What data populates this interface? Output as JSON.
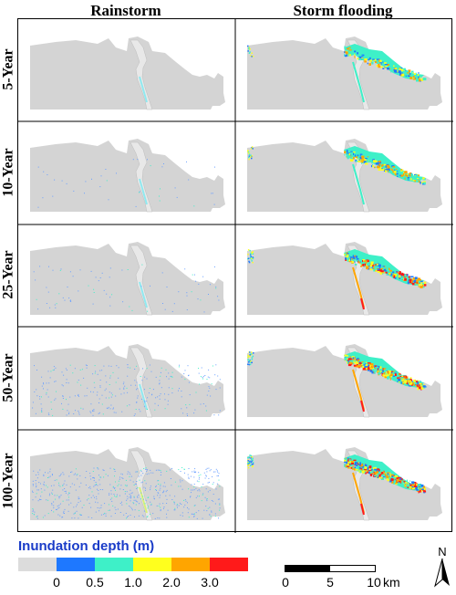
{
  "columns": [
    "Rainstorm",
    "Storm flooding"
  ],
  "rows": [
    "5-Year",
    "10-Year",
    "25-Year",
    "50-Year",
    "100-Year"
  ],
  "legend": {
    "title": "Inundation depth (m)",
    "classes": [
      {
        "color": "#dcdcdc"
      },
      {
        "color": "#1e78ff"
      },
      {
        "color": "#3ef0c8"
      },
      {
        "color": "#ffff1e"
      },
      {
        "color": "#ffa500"
      },
      {
        "color": "#ff1a1a"
      }
    ],
    "ticks": [
      "0",
      "0.5",
      "1.0",
      "2.0",
      "3.0"
    ]
  },
  "scale_bar": {
    "ticks": [
      "0",
      "5",
      "10"
    ],
    "unit": "km"
  },
  "north_arrow": {
    "label": "N"
  },
  "colors": {
    "land": "#d4d4d4",
    "river": "#e8e8e8",
    "border": "#000000"
  }
}
